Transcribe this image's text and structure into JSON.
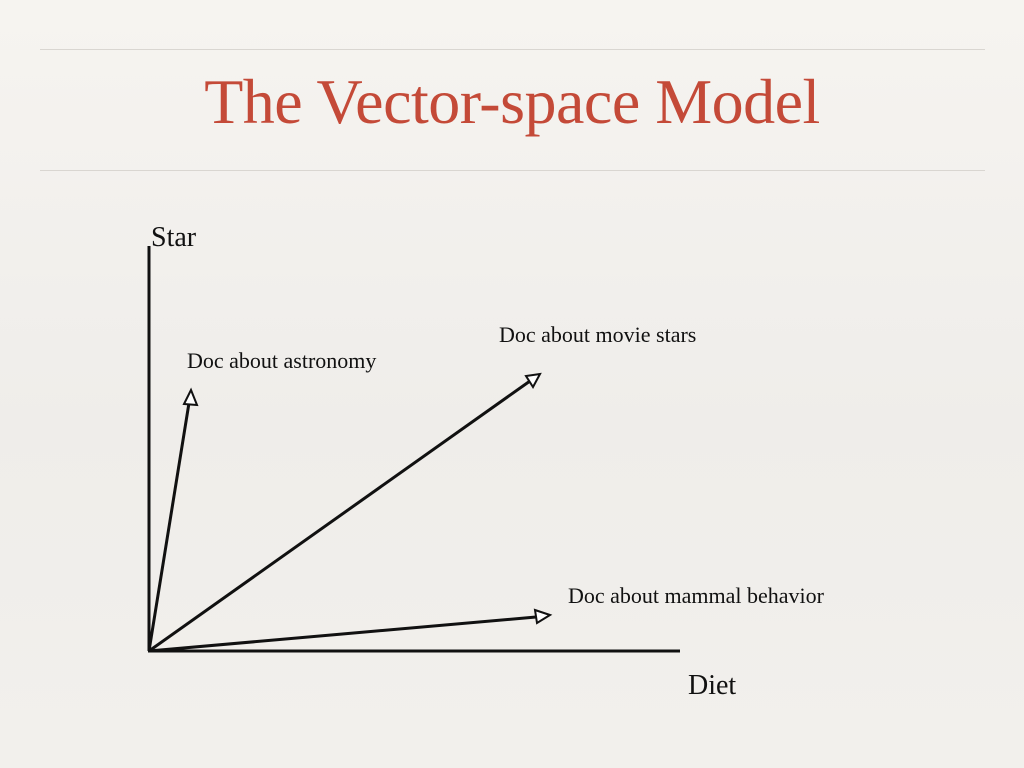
{
  "slide": {
    "title": "The Vector-space Model",
    "colors": {
      "title": "#c44a38",
      "rule": "#d9d6d1",
      "ink": "#111111"
    }
  },
  "diagram": {
    "y_axis_label": "Star",
    "x_axis_label": "Diet",
    "vectors": [
      {
        "id": "astronomy",
        "label": "Doc about astronomy"
      },
      {
        "id": "movie-stars",
        "label": "Doc about movie stars"
      },
      {
        "id": "mammal-behavior",
        "label": "Doc about mammal behavior"
      }
    ]
  }
}
